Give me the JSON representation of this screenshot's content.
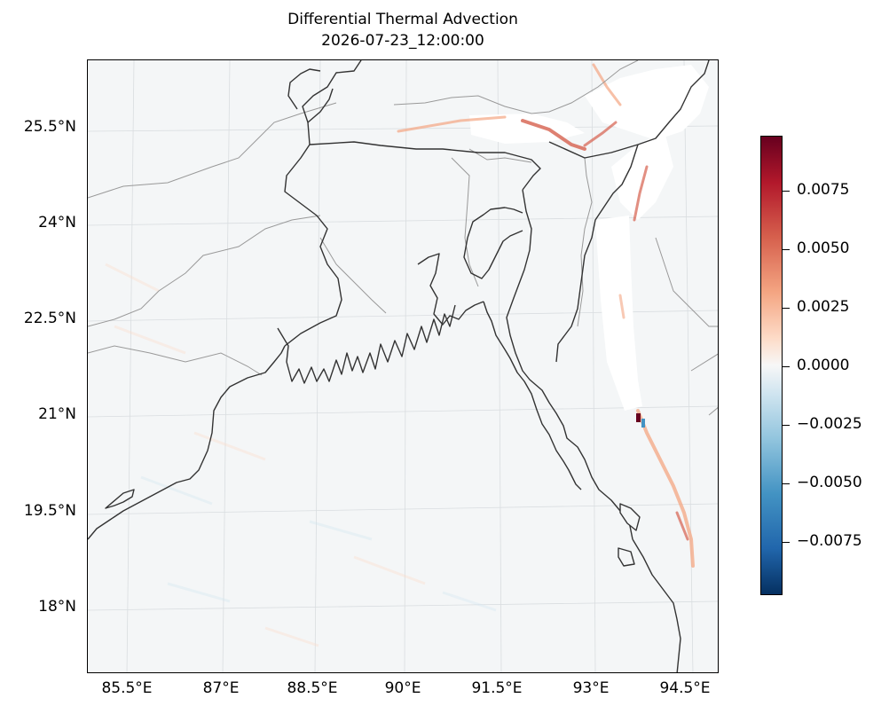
{
  "title": {
    "line1": "Differential Thermal Advection",
    "line2": "2026-07-23_12:00:00"
  },
  "map": {
    "region": "Bay of Bengal / Bangladesh",
    "lat_labels": [
      "25.5°N",
      "24°N",
      "22.5°N",
      "21°N",
      "19.5°N",
      "18°N"
    ],
    "lon_labels": [
      "85.5°E",
      "87°E",
      "88.5°E",
      "90°E",
      "91.5°E",
      "93°E",
      "94.5°E"
    ],
    "background_color": "#f4f6f7",
    "coastline_color": "#333333",
    "boundary_color": "#999999",
    "gridline_color": "#d9dde0",
    "masked_color": "#ffffff"
  },
  "colorbar": {
    "colormap": "RdBu_r",
    "tick_labels": [
      "0.0075",
      "0.0050",
      "0.0025",
      "0.0000",
      "−0.0025",
      "−0.0050",
      "−0.0075"
    ],
    "top_color": "#67001f",
    "bottom_color": "#053061"
  }
}
